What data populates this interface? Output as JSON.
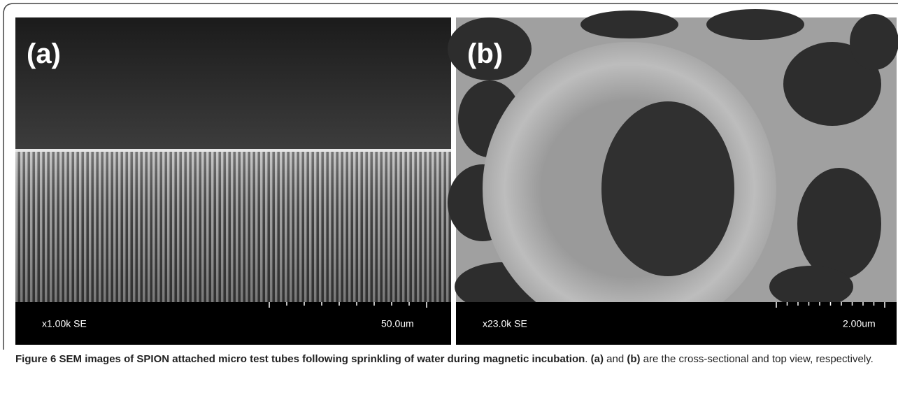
{
  "panels": [
    {
      "label": "(a)",
      "magnification": "x1.00k SE",
      "scale": "50.0um"
    },
    {
      "label": "(b)",
      "magnification": "x23.0k SE",
      "scale": "2.00um"
    }
  ],
  "caption": {
    "label": "Figure 6",
    "title": "SEM images of SPION attached micro test tubes following sprinkling of water during magnetic incubation",
    "parts": [
      ". ",
      "(a)",
      " and ",
      "(b)",
      " are the cross-sectional and top view, respectively."
    ]
  }
}
